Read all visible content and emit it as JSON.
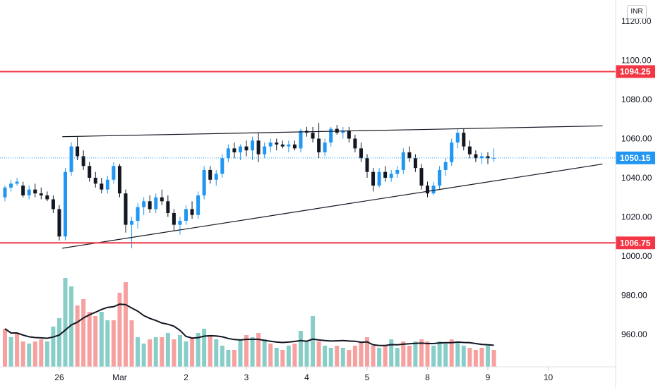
{
  "currency": "INR",
  "chart_data": {
    "type": "candlestick",
    "y_axis": {
      "range": [
        942,
        1124
      ],
      "ticks": [
        960,
        980,
        1000,
        1020,
        1040,
        1060,
        1080,
        1100,
        1120
      ],
      "tick_labels": [
        "960.00",
        "980.00",
        "1000.00",
        "1020.00",
        "1040.00",
        "1060.00",
        "1080.00",
        "1100.00",
        "1120.00"
      ]
    },
    "x_axis": {
      "labels": [
        "26",
        "Mar",
        "2",
        "3",
        "4",
        "5",
        "8",
        "9",
        "10"
      ],
      "label_positions": [
        9,
        19,
        30,
        40,
        50,
        60,
        70,
        80,
        90
      ]
    },
    "current_price": {
      "value": 1050.15,
      "label": "1050.15",
      "color": "#2196f3"
    },
    "horizontal_levels": [
      {
        "value": 1094.25,
        "label": "1094.25",
        "color": "#f23645"
      },
      {
        "value": 1006.75,
        "label": "1006.75",
        "color": "#f23645"
      }
    ],
    "trendlines": [
      {
        "x1": 9.5,
        "y1": 1061,
        "x2": 99,
        "y2": 1066.5,
        "color": "#131722"
      },
      {
        "x1": 9.5,
        "y1": 1004,
        "x2": 99,
        "y2": 1047,
        "color": "#131722"
      }
    ],
    "colors": {
      "up": "#2196f3",
      "down": "#131722",
      "vol_up": "#26a69a",
      "vol_down": "#ef5350",
      "ma": "#131722"
    },
    "volume_scale": {
      "ymax_bar_top": 90
    },
    "candles": [
      [
        1030,
        1036,
        1028,
        1035
      ],
      [
        1035,
        1039,
        1033,
        1037
      ],
      [
        1037,
        1040,
        1036,
        1038
      ],
      [
        1036,
        1038,
        1030,
        1031
      ],
      [
        1031,
        1036,
        1029,
        1034
      ],
      [
        1034,
        1037,
        1030,
        1032
      ],
      [
        1032,
        1035,
        1029,
        1031
      ],
      [
        1031,
        1033,
        1028,
        1029
      ],
      [
        1029,
        1031,
        1022,
        1024
      ],
      [
        1024,
        1026,
        1008,
        1010
      ],
      [
        1010,
        1045,
        1008,
        1043
      ],
      [
        1043,
        1058,
        1041,
        1056
      ],
      [
        1056,
        1061,
        1049,
        1051
      ],
      [
        1051,
        1054,
        1044,
        1046
      ],
      [
        1046,
        1048,
        1038,
        1040
      ],
      [
        1040,
        1043,
        1035,
        1037
      ],
      [
        1037,
        1040,
        1032,
        1034
      ],
      [
        1034,
        1041,
        1032,
        1039
      ],
      [
        1039,
        1048,
        1037,
        1046
      ],
      [
        1046,
        1047,
        1030,
        1032
      ],
      [
        1032,
        1034,
        1012,
        1016
      ],
      [
        1016,
        1020,
        1004,
        1018
      ],
      [
        1018,
        1027,
        1014,
        1025
      ],
      [
        1025,
        1030,
        1021,
        1028
      ],
      [
        1028,
        1031,
        1022,
        1024
      ],
      [
        1024,
        1032,
        1022,
        1030
      ],
      [
        1030,
        1034,
        1026,
        1028
      ],
      [
        1028,
        1031,
        1020,
        1022
      ],
      [
        1022,
        1024,
        1013,
        1016
      ],
      [
        1016,
        1020,
        1011,
        1018
      ],
      [
        1018,
        1026,
        1016,
        1024
      ],
      [
        1024,
        1028,
        1019,
        1021
      ],
      [
        1021,
        1033,
        1019,
        1031
      ],
      [
        1031,
        1046,
        1029,
        1044
      ],
      [
        1044,
        1046,
        1037,
        1039
      ],
      [
        1039,
        1044,
        1036,
        1042
      ],
      [
        1042,
        1052,
        1040,
        1050
      ],
      [
        1050,
        1057,
        1048,
        1055
      ],
      [
        1055,
        1058,
        1050,
        1053
      ],
      [
        1053,
        1057,
        1049,
        1056
      ],
      [
        1056,
        1059,
        1051,
        1054
      ],
      [
        1054,
        1061,
        1049,
        1059
      ],
      [
        1059,
        1063,
        1048,
        1052
      ],
      [
        1052,
        1058,
        1050,
        1056
      ],
      [
        1056,
        1060,
        1053,
        1058
      ],
      [
        1058,
        1060,
        1054,
        1057
      ],
      [
        1057,
        1059,
        1055,
        1056
      ],
      [
        1056,
        1059,
        1053,
        1057
      ],
      [
        1057,
        1059,
        1054,
        1055
      ],
      [
        1055,
        1065,
        1053,
        1064
      ],
      [
        1064,
        1066,
        1061,
        1063
      ],
      [
        1063,
        1066,
        1058,
        1060
      ],
      [
        1060,
        1068,
        1050,
        1053
      ],
      [
        1053,
        1060,
        1051,
        1058
      ],
      [
        1058,
        1066,
        1056,
        1065
      ],
      [
        1065,
        1067,
        1062,
        1063
      ],
      [
        1063,
        1066,
        1060,
        1064
      ],
      [
        1064,
        1066,
        1058,
        1060
      ],
      [
        1060,
        1062,
        1053,
        1055
      ],
      [
        1055,
        1058,
        1048,
        1050
      ],
      [
        1050,
        1052,
        1040,
        1043
      ],
      [
        1043,
        1045,
        1033,
        1036
      ],
      [
        1036,
        1045,
        1035,
        1043
      ],
      [
        1043,
        1046,
        1038,
        1040
      ],
      [
        1040,
        1044,
        1038,
        1042
      ],
      [
        1042,
        1046,
        1040,
        1044
      ],
      [
        1044,
        1055,
        1042,
        1053
      ],
      [
        1053,
        1056,
        1048,
        1050
      ],
      [
        1050,
        1052,
        1043,
        1045
      ],
      [
        1045,
        1047,
        1034,
        1036
      ],
      [
        1036,
        1038,
        1030,
        1032
      ],
      [
        1032,
        1038,
        1031,
        1036
      ],
      [
        1036,
        1046,
        1034,
        1044
      ],
      [
        1044,
        1050,
        1041,
        1048
      ],
      [
        1048,
        1060,
        1046,
        1058
      ],
      [
        1058,
        1065,
        1055,
        1063
      ],
      [
        1063,
        1065,
        1054,
        1056
      ],
      [
        1056,
        1059,
        1050,
        1052
      ],
      [
        1052,
        1054,
        1048,
        1050
      ],
      [
        1050,
        1053,
        1047,
        1051
      ],
      [
        1051,
        1053,
        1047,
        1050
      ],
      [
        1050,
        1055,
        1048,
        1050.15
      ]
    ],
    "volumes": [
      [
        18,
        "down"
      ],
      [
        14,
        "up"
      ],
      [
        16,
        "down"
      ],
      [
        12,
        "down"
      ],
      [
        11,
        "up"
      ],
      [
        12,
        "down"
      ],
      [
        13,
        "down"
      ],
      [
        12,
        "up"
      ],
      [
        19,
        "up"
      ],
      [
        23,
        "up"
      ],
      [
        42,
        "up"
      ],
      [
        38,
        "up"
      ],
      [
        29,
        "down"
      ],
      [
        32,
        "down"
      ],
      [
        26,
        "down"
      ],
      [
        24,
        "down"
      ],
      [
        26,
        "up"
      ],
      [
        22,
        "up"
      ],
      [
        22,
        "down"
      ],
      [
        35,
        "down"
      ],
      [
        40,
        "down"
      ],
      [
        22,
        "down"
      ],
      [
        14,
        "up"
      ],
      [
        11,
        "up"
      ],
      [
        13,
        "down"
      ],
      [
        14,
        "up"
      ],
      [
        14,
        "down"
      ],
      [
        16,
        "up"
      ],
      [
        13,
        "down"
      ],
      [
        15,
        "up"
      ],
      [
        12,
        "up"
      ],
      [
        14,
        "down"
      ],
      [
        16,
        "up"
      ],
      [
        18,
        "up"
      ],
      [
        15,
        "down"
      ],
      [
        13,
        "up"
      ],
      [
        10,
        "up"
      ],
      [
        8,
        "up"
      ],
      [
        8,
        "down"
      ],
      [
        13,
        "up"
      ],
      [
        15,
        "down"
      ],
      [
        14,
        "up"
      ],
      [
        16,
        "down"
      ],
      [
        13,
        "up"
      ],
      [
        11,
        "down"
      ],
      [
        9,
        "up"
      ],
      [
        8,
        "down"
      ],
      [
        10,
        "up"
      ],
      [
        11,
        "down"
      ],
      [
        17,
        "up"
      ],
      [
        12,
        "up"
      ],
      [
        24,
        "up"
      ],
      [
        12,
        "down"
      ],
      [
        10,
        "up"
      ],
      [
        9,
        "up"
      ],
      [
        10,
        "down"
      ],
      [
        9,
        "up"
      ],
      [
        8,
        "down"
      ],
      [
        10,
        "down"
      ],
      [
        12,
        "down"
      ],
      [
        14,
        "down"
      ],
      [
        10,
        "down"
      ],
      [
        9,
        "up"
      ],
      [
        10,
        "down"
      ],
      [
        13,
        "up"
      ],
      [
        9,
        "up"
      ],
      [
        12,
        "down"
      ],
      [
        10,
        "down"
      ],
      [
        12,
        "up"
      ],
      [
        13,
        "down"
      ],
      [
        12,
        "down"
      ],
      [
        10,
        "up"
      ],
      [
        12,
        "up"
      ],
      [
        11,
        "up"
      ],
      [
        13,
        "down"
      ],
      [
        12,
        "up"
      ],
      [
        10,
        "up"
      ],
      [
        9,
        "down"
      ],
      [
        8,
        "down"
      ],
      [
        9,
        "down"
      ],
      [
        10,
        "up"
      ],
      [
        8,
        "down"
      ]
    ]
  }
}
